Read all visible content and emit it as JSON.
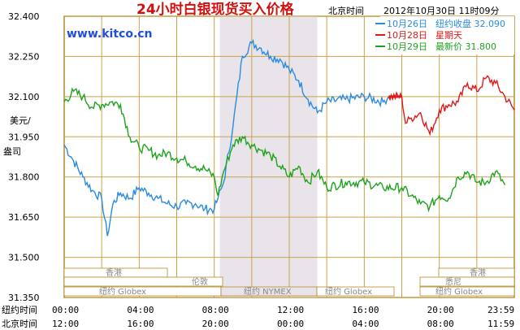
{
  "title": "24小时白银现货买入价格",
  "timezone_label": "北京时间",
  "timestamp": "2012年10月30日 11时09分",
  "site": "www.kitco.cn",
  "y_axis_label_top": "美元/",
  "y_axis_label_bottom": "盎司",
  "legend": [
    {
      "date": "10月26日",
      "label": "纽约收盘",
      "value": "32.090",
      "color": "#2a8be0"
    },
    {
      "date": "10月28日",
      "label": "星期天",
      "value": "",
      "color": "#e01818"
    },
    {
      "date": "10月29日",
      "label": "最新价",
      "value": "31.800",
      "color": "#1ea31e"
    }
  ],
  "market_bands": {
    "hongkong": "香港",
    "london": "伦敦",
    "ny_globex": "纽约 Globex",
    "ny_nymex": "纽约 NYMEX",
    "sydney": "悉尼"
  },
  "x_rows": [
    {
      "label": "纽约时间",
      "ticks": [
        "00:00",
        "04:00",
        "08:00",
        "12:00",
        "16:00",
        "20:00",
        "23:59"
      ]
    },
    {
      "label": "北京时间",
      "ticks": [
        "12:00",
        "16:00",
        "20:00",
        "00:00",
        "04:00",
        "08:00",
        "11:59"
      ]
    }
  ],
  "chart_data": {
    "type": "line",
    "y_ticks": [
      "32.400",
      "32.250",
      "32.100",
      "31.950",
      "31.800",
      "31.650",
      "31.500",
      "31.350"
    ],
    "ylim": [
      31.35,
      32.4
    ],
    "xlim_hours": [
      0,
      24
    ],
    "shaded_session_hours": [
      8.3,
      13.5
    ],
    "grid": true,
    "series": [
      {
        "name": "10月26日",
        "color": "#2a8be0",
        "x": [
          0,
          0.5,
          1,
          1.5,
          2,
          2.3,
          2.6,
          3,
          3.5,
          4,
          4.5,
          5,
          5.5,
          6,
          6.5,
          7,
          7.5,
          8,
          8.2,
          8.5,
          9,
          9.5,
          10,
          10.5,
          11,
          11.5,
          12,
          12.5,
          13,
          13.5,
          14,
          15,
          16,
          17,
          17.3
        ],
        "y": [
          31.92,
          31.86,
          31.8,
          31.75,
          31.72,
          31.58,
          31.7,
          31.74,
          31.72,
          31.76,
          31.74,
          31.72,
          31.7,
          31.69,
          31.7,
          31.7,
          31.68,
          31.68,
          31.72,
          31.78,
          31.99,
          32.25,
          32.3,
          32.28,
          32.25,
          32.24,
          32.2,
          32.16,
          32.09,
          32.04,
          32.08,
          32.09,
          32.1,
          32.08,
          32.1
        ]
      },
      {
        "name": "10月28日",
        "color": "#e01818",
        "x": [
          17.3,
          18.0,
          18.2,
          18.5,
          19,
          19.5,
          20,
          20.5,
          21,
          21.5,
          22,
          22.5,
          23,
          23.5,
          24
        ],
        "y": [
          32.1,
          32.1,
          32.0,
          32.02,
          32.04,
          31.96,
          32.05,
          32.07,
          32.08,
          32.15,
          32.12,
          32.17,
          32.15,
          32.1,
          32.05
        ]
      },
      {
        "name": "10月29日",
        "color": "#1ea31e",
        "x": [
          0,
          0.5,
          1,
          1.5,
          2,
          2.5,
          3,
          3.5,
          4,
          4.5,
          5,
          5.5,
          6,
          6.5,
          7,
          7.5,
          8,
          8.2,
          8.5,
          9,
          9.5,
          10,
          10.5,
          11,
          11.5,
          12,
          12.5,
          13,
          13.5,
          14,
          15,
          16,
          17,
          18,
          18.5,
          19,
          19.5,
          20,
          20.5,
          21,
          21.5,
          22,
          22.5,
          23,
          23.5
        ],
        "y": [
          32.08,
          32.12,
          32.1,
          32.06,
          32.07,
          32.08,
          32.07,
          31.95,
          31.91,
          31.9,
          31.88,
          31.89,
          31.87,
          31.86,
          31.84,
          31.83,
          31.8,
          31.73,
          31.82,
          31.92,
          31.95,
          31.92,
          31.9,
          31.88,
          31.84,
          31.8,
          31.84,
          31.78,
          31.82,
          31.76,
          31.78,
          31.78,
          31.76,
          31.76,
          31.73,
          31.7,
          31.69,
          31.73,
          31.72,
          31.8,
          31.82,
          31.78,
          31.78,
          31.82,
          31.77
        ]
      }
    ]
  }
}
